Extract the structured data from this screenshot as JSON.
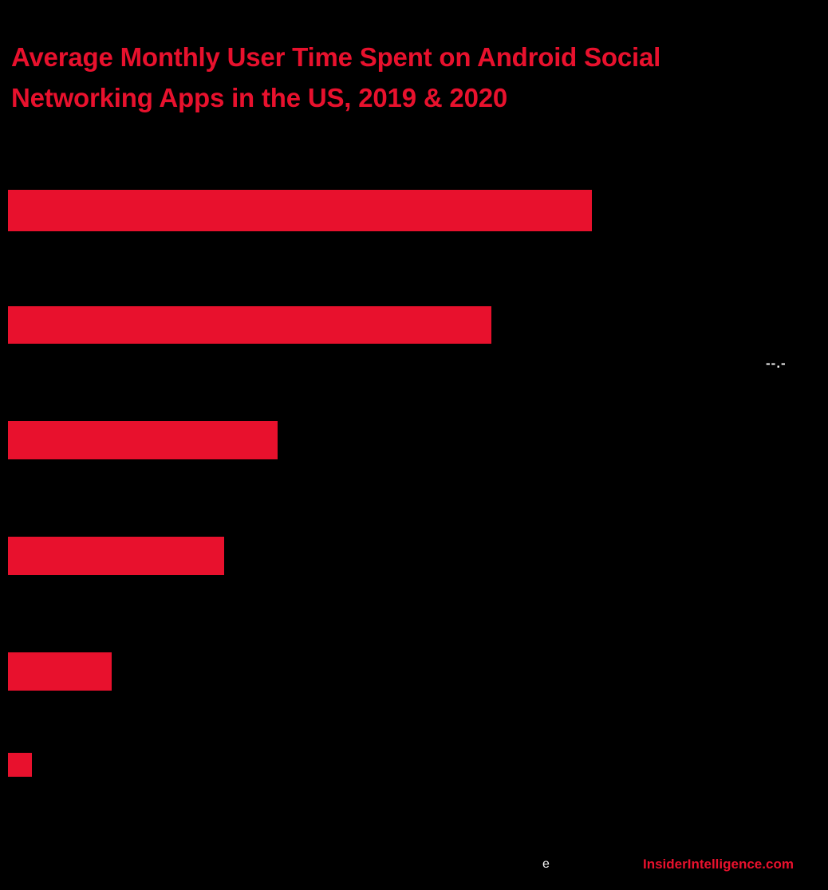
{
  "page": {
    "background": "#000000"
  },
  "title": {
    "text": "Average Monthly User Time Spent on Android Social Networking Apps in the US, 2019 & 2020",
    "color": "#e8112d"
  },
  "annotation": {
    "text": "--.-",
    "color": "#f5f5f5"
  },
  "footer": {
    "note": "e",
    "brand": "InsiderIntelligence.com",
    "brand_color": "#e8112d"
  },
  "chart_data": {
    "type": "bar",
    "orientation": "horizontal",
    "title": "Average Monthly User Time Spent on Android Social Networking Apps in the US, 2019 & 2020",
    "categories": [
      "",
      "",
      "",
      "",
      "",
      ""
    ],
    "values": [
      732,
      606,
      338,
      271,
      130,
      30
    ],
    "value_unit": "bar length in pixels (numeric value labels not visible in image)",
    "bar_color": "#e8112d",
    "xlim": [
      0,
      1038
    ],
    "grid": false,
    "legend": false,
    "visible_data_label": "--.-"
  }
}
